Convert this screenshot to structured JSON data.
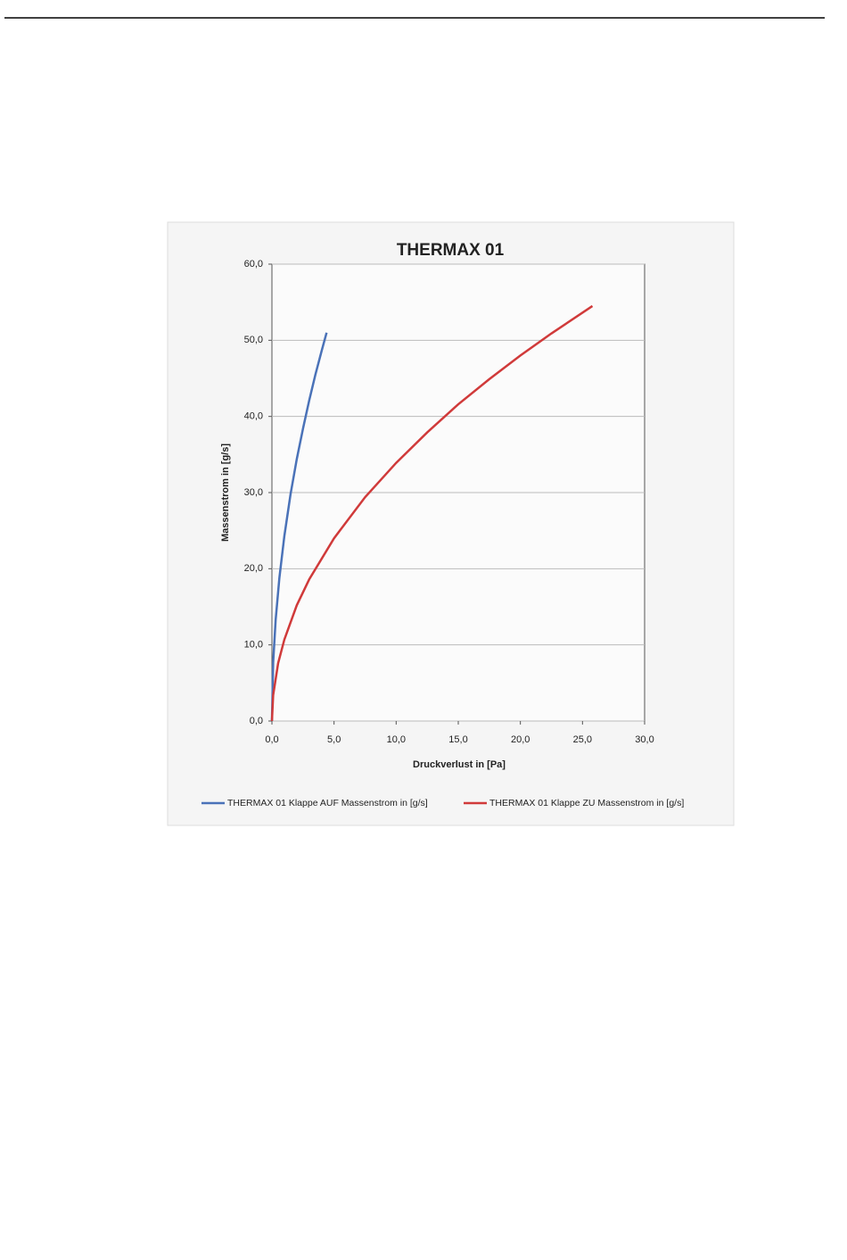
{
  "chart_data": {
    "type": "line",
    "title": "THERMAX 01",
    "x_label": "Druckverlust in [Pa]",
    "y_label": "Massenstrom in [g/s]",
    "xlim": [
      0,
      30
    ],
    "ylim": [
      0,
      60
    ],
    "xticks": [
      {
        "value": 0,
        "label": "0,0"
      },
      {
        "value": 5,
        "label": "5,0"
      },
      {
        "value": 10,
        "label": "10,0"
      },
      {
        "value": 15,
        "label": "15,0"
      },
      {
        "value": 20,
        "label": "20,0"
      },
      {
        "value": 25,
        "label": "25,0"
      },
      {
        "value": 30,
        "label": "30,0"
      }
    ],
    "yticks": [
      {
        "value": 0,
        "label": "0,0"
      },
      {
        "value": 10,
        "label": "10,0"
      },
      {
        "value": 20,
        "label": "20,0"
      },
      {
        "value": 30,
        "label": "30,0"
      },
      {
        "value": 40,
        "label": "40,0"
      },
      {
        "value": 50,
        "label": "50,0"
      },
      {
        "value": 60,
        "label": "60,0"
      }
    ],
    "grid": true,
    "legend": "bottom",
    "series": [
      {
        "name": "THERMAX 01 Klappe AUF Massenstrom in [g/s]",
        "color": "#4a72b8",
        "x": [
          0,
          0.1,
          0.3,
          0.6,
          1.0,
          1.5,
          2.0,
          2.5,
          3.0,
          3.5,
          4.0,
          4.4
        ],
        "values": [
          0,
          7.7,
          13.3,
          18.8,
          24.3,
          29.8,
          34.4,
          38.4,
          42.1,
          45.5,
          48.6,
          51.0
        ]
      },
      {
        "name": "THERMAX 01 Klappe ZU Massenstrom in [g/s]",
        "color": "#d03a3a",
        "x": [
          0,
          0.1,
          0.5,
          1,
          2,
          3,
          5,
          7.5,
          10,
          12.5,
          15,
          17.5,
          20,
          22.5,
          25.8
        ],
        "values": [
          0,
          3.4,
          7.6,
          10.7,
          15.2,
          18.6,
          24.0,
          29.4,
          33.9,
          37.9,
          41.6,
          44.9,
          48.0,
          50.9,
          54.5
        ]
      }
    ]
  }
}
